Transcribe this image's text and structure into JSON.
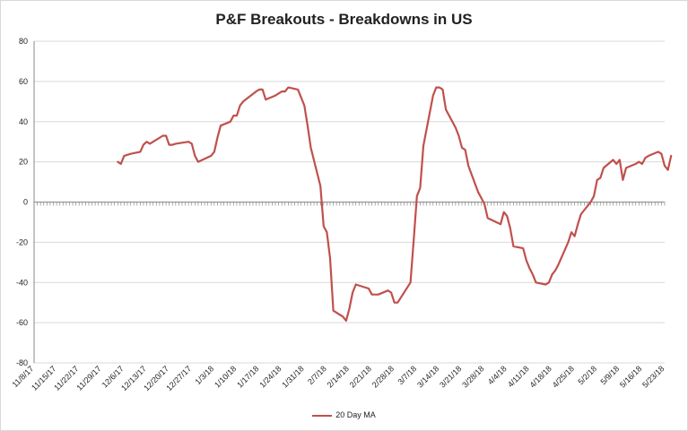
{
  "chart_data": {
    "type": "line",
    "title": "P&F Breakouts - Breakdowns in US",
    "xlabel": "",
    "ylabel": "",
    "ylim": [
      -80,
      80
    ],
    "yticks": [
      80,
      60,
      40,
      20,
      0,
      -20,
      -40,
      -60,
      -80
    ],
    "grid": "horizontal",
    "legend_position": "bottom",
    "x_tick_labels": [
      "11/8/17",
      "11/15/17",
      "11/22/17",
      "11/29/17",
      "12/6/17",
      "12/13/17",
      "12/20/17",
      "12/27/17",
      "1/3/18",
      "1/10/18",
      "1/17/18",
      "1/24/18",
      "1/31/18",
      "2/7/18",
      "2/14/18",
      "2/21/18",
      "2/28/18",
      "3/7/18",
      "3/14/18",
      "3/21/18",
      "3/28/18",
      "4/4/18",
      "4/11/18",
      "4/18/18",
      "4/25/18",
      "5/2/18",
      "5/9/18",
      "5/16/18",
      "5/23/18"
    ],
    "series": [
      {
        "name": "20 Day MA",
        "color": "#c0504d",
        "points": [
          [
            "12/4/17",
            20
          ],
          [
            "12/5/17",
            19
          ],
          [
            "12/6/17",
            23
          ],
          [
            "12/7/17",
            23.5
          ],
          [
            "12/8/17",
            24
          ],
          [
            "12/11/17",
            25
          ],
          [
            "12/12/17",
            28.5
          ],
          [
            "12/13/17",
            30
          ],
          [
            "12/14/17",
            29
          ],
          [
            "12/15/17",
            30
          ],
          [
            "12/18/17",
            33
          ],
          [
            "12/19/17",
            33
          ],
          [
            "12/20/17",
            28.5
          ],
          [
            "12/21/17",
            28.5
          ],
          [
            "12/22/17",
            29
          ],
          [
            "12/26/17",
            30
          ],
          [
            "12/27/17",
            29
          ],
          [
            "12/28/17",
            23
          ],
          [
            "12/29/17",
            20
          ],
          [
            "1/2/18",
            23
          ],
          [
            "1/3/18",
            25
          ],
          [
            "1/4/18",
            32
          ],
          [
            "1/5/18",
            38
          ],
          [
            "1/8/18",
            40
          ],
          [
            "1/9/18",
            43
          ],
          [
            "1/10/18",
            43
          ],
          [
            "1/11/18",
            48
          ],
          [
            "1/12/18",
            50
          ],
          [
            "1/16/18",
            55
          ],
          [
            "1/17/18",
            56
          ],
          [
            "1/18/18",
            56
          ],
          [
            "1/19/18",
            51
          ],
          [
            "1/22/18",
            53
          ],
          [
            "1/23/18",
            54
          ],
          [
            "1/24/18",
            55
          ],
          [
            "1/25/18",
            55
          ],
          [
            "1/26/18",
            57
          ],
          [
            "1/29/18",
            56
          ],
          [
            "1/30/18",
            52
          ],
          [
            "1/31/18",
            48
          ],
          [
            "2/1/18",
            38
          ],
          [
            "2/2/18",
            27
          ],
          [
            "2/5/18",
            8
          ],
          [
            "2/6/18",
            -12
          ],
          [
            "2/7/18",
            -15
          ],
          [
            "2/8/18",
            -28
          ],
          [
            "2/9/18",
            -54
          ],
          [
            "2/12/18",
            -57
          ],
          [
            "2/13/18",
            -59
          ],
          [
            "2/14/18",
            -53
          ],
          [
            "2/15/18",
            -45
          ],
          [
            "2/16/18",
            -41
          ],
          [
            "2/20/18",
            -43
          ],
          [
            "2/21/18",
            -46
          ],
          [
            "2/22/18",
            -46
          ],
          [
            "2/23/18",
            -46
          ],
          [
            "2/26/18",
            -44
          ],
          [
            "2/27/18",
            -45
          ],
          [
            "2/28/18",
            -50
          ],
          [
            "3/1/18",
            -50
          ],
          [
            "3/5/18",
            -40
          ],
          [
            "3/6/18",
            -19
          ],
          [
            "3/7/18",
            3
          ],
          [
            "3/8/18",
            7
          ],
          [
            "3/9/18",
            28
          ],
          [
            "3/12/18",
            53
          ],
          [
            "3/13/18",
            57
          ],
          [
            "3/14/18",
            57
          ],
          [
            "3/15/18",
            56
          ],
          [
            "3/16/18",
            46
          ],
          [
            "3/19/18",
            37
          ],
          [
            "3/20/18",
            33
          ],
          [
            "3/21/18",
            27
          ],
          [
            "3/22/18",
            26
          ],
          [
            "3/23/18",
            18
          ],
          [
            "3/26/18",
            5
          ],
          [
            "3/27/18",
            2
          ],
          [
            "3/28/18",
            -1
          ],
          [
            "3/29/18",
            -8
          ],
          [
            "4/2/18",
            -11
          ],
          [
            "4/3/18",
            -5
          ],
          [
            "4/4/18",
            -7
          ],
          [
            "4/5/18",
            -13
          ],
          [
            "4/6/18",
            -22
          ],
          [
            "4/9/18",
            -23
          ],
          [
            "4/10/18",
            -29
          ],
          [
            "4/11/18",
            -33
          ],
          [
            "4/12/18",
            -36
          ],
          [
            "4/13/18",
            -40
          ],
          [
            "4/16/18",
            -41
          ],
          [
            "4/17/18",
            -40
          ],
          [
            "4/18/18",
            -36
          ],
          [
            "4/19/18",
            -34
          ],
          [
            "4/20/18",
            -31
          ],
          [
            "4/23/18",
            -20
          ],
          [
            "4/24/18",
            -15
          ],
          [
            "4/25/18",
            -17
          ],
          [
            "4/26/18",
            -11
          ],
          [
            "4/27/18",
            -6
          ],
          [
            "4/30/18",
            0
          ],
          [
            "5/1/18",
            3
          ],
          [
            "5/2/18",
            11
          ],
          [
            "5/3/18",
            12
          ],
          [
            "5/4/18",
            17
          ],
          [
            "5/7/18",
            21
          ],
          [
            "5/8/18",
            19
          ],
          [
            "5/9/18",
            21
          ],
          [
            "5/10/18",
            11
          ],
          [
            "5/11/18",
            17
          ],
          [
            "5/14/18",
            19
          ],
          [
            "5/15/18",
            20
          ],
          [
            "5/16/18",
            19
          ],
          [
            "5/17/18",
            22
          ],
          [
            "5/18/18",
            23
          ],
          [
            "5/21/18",
            25
          ],
          [
            "5/22/18",
            24
          ],
          [
            "5/23/18",
            18
          ],
          [
            "5/24/18",
            16
          ],
          [
            "5/25/18",
            23
          ]
        ]
      }
    ]
  }
}
